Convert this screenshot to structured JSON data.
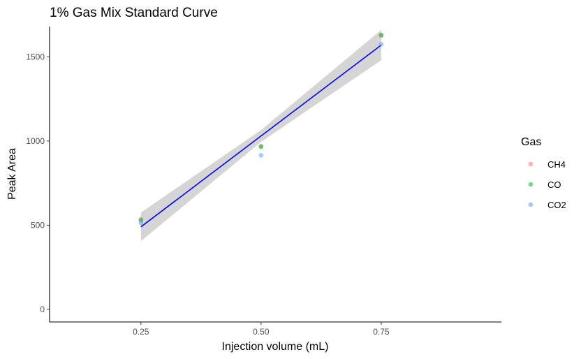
{
  "chart_data": {
    "type": "scatter",
    "title": "1% Gas Mix Standard Curve",
    "xlabel": "Injection volume (mL)",
    "ylabel": "Peak Area",
    "xlim": [
      0.06,
      1.0
    ],
    "ylim": [
      -75,
      1680
    ],
    "x_ticks": [
      0.25,
      0.5,
      0.75
    ],
    "x_tick_labels": [
      "0.25",
      "0.50",
      "0.75"
    ],
    "y_ticks": [
      0,
      500,
      1000,
      1500
    ],
    "y_tick_labels": [
      "0",
      "500",
      "1000",
      "1500"
    ],
    "grid": false,
    "legend": {
      "title": "Gas",
      "placement": "right"
    },
    "series": [
      {
        "name": "CH4",
        "color": "#F8766D",
        "x": [
          0.25,
          0.5,
          0.75
        ],
        "y": [
          535,
          970,
          1625
        ]
      },
      {
        "name": "CO",
        "color": "#00BA38",
        "x": [
          0.25,
          0.5,
          0.75
        ],
        "y": [
          530,
          965,
          1630
        ]
      },
      {
        "name": "CO2",
        "color": "#619CFF",
        "x": [
          0.25,
          0.5,
          0.75
        ],
        "y": [
          515,
          915,
          1575
        ]
      }
    ],
    "fit": {
      "color": "#0000FF",
      "band_color": "#D3D3D3",
      "x": [
        0.25,
        0.5,
        0.75
      ],
      "y": [
        490,
        1030,
        1570
      ],
      "lower": [
        405,
        995,
        1480
      ],
      "upper": [
        575,
        1065,
        1660
      ]
    }
  }
}
